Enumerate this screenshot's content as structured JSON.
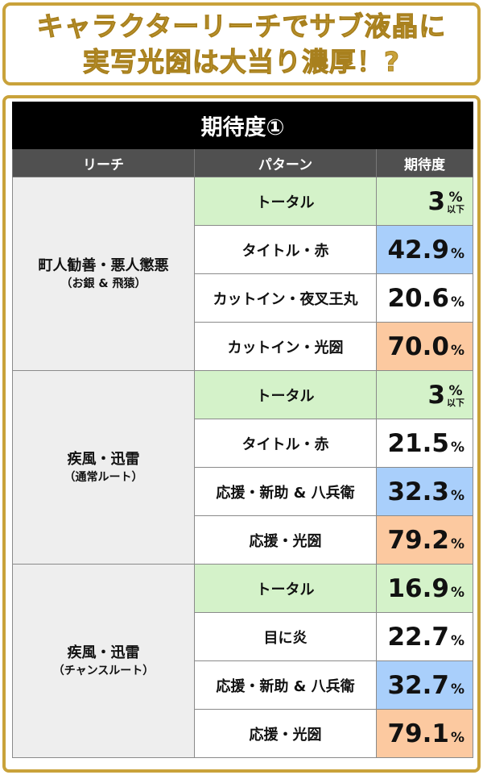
{
  "headline": {
    "line1": "キャラクターリーチでサブ液晶に",
    "line2": "実写光圀は大当り濃厚！?"
  },
  "table": {
    "title": "期待度①",
    "headers": {
      "reach": "リーチ",
      "pattern": "パターン",
      "expectation": "期待度"
    },
    "groups": [
      {
        "name": "町人勧善・悪人懲悪",
        "sub": "（お銀 & 飛猿）",
        "rows": [
          {
            "pattern": "トータル",
            "value": "3",
            "unit": "%",
            "note": "以下",
            "color": "green"
          },
          {
            "pattern": "タイトル・赤",
            "value": "42.9",
            "unit": "%",
            "color": "blue"
          },
          {
            "pattern": "カットイン・夜叉王丸",
            "value": "20.6",
            "unit": "%",
            "color": "white"
          },
          {
            "pattern": "カットイン・光圀",
            "value": "70.0",
            "unit": "%",
            "color": "orange"
          }
        ]
      },
      {
        "name": "疾風・迅雷",
        "sub": "（通常ルート）",
        "rows": [
          {
            "pattern": "トータル",
            "value": "3",
            "unit": "%",
            "note": "以下",
            "color": "green"
          },
          {
            "pattern": "タイトル・赤",
            "value": "21.5",
            "unit": "%",
            "color": "white"
          },
          {
            "pattern": "応援・新助 & 八兵衛",
            "value": "32.3",
            "unit": "%",
            "color": "blue"
          },
          {
            "pattern": "応援・光圀",
            "value": "79.2",
            "unit": "%",
            "color": "orange"
          }
        ]
      },
      {
        "name": "疾風・迅雷",
        "sub": "（チャンスルート）",
        "rows": [
          {
            "pattern": "トータル",
            "value": "16.9",
            "unit": "%",
            "color": "green"
          },
          {
            "pattern": "目に炎",
            "value": "22.7",
            "unit": "%",
            "color": "white"
          },
          {
            "pattern": "応援・新助 & 八兵衛",
            "value": "32.7",
            "unit": "%",
            "color": "blue"
          },
          {
            "pattern": "応援・光圀",
            "value": "79.1",
            "unit": "%",
            "color": "orange"
          }
        ]
      }
    ]
  },
  "colors": {
    "gold": "#c9a23a",
    "green": "#d4f2c9",
    "blue": "#a9cffb",
    "orange": "#fcc9a0",
    "header": "#505050"
  }
}
